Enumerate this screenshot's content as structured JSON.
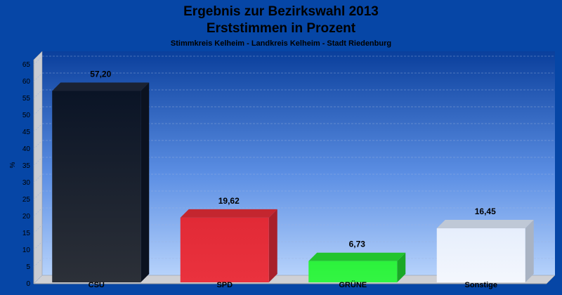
{
  "chart_data": {
    "type": "bar",
    "title": "Ergebnis zur Bezirkswahl 2013",
    "subtitle": "Erststimmen in Prozent",
    "subsubtitle": "Stimmkreis Kelheim - Landkreis Kelheim - Stadt Riedenburg",
    "ylabel": "%",
    "xlabel": "",
    "ylim": [
      0,
      65
    ],
    "ytick_step": 5,
    "grid": true,
    "legend": "none",
    "categories": [
      "CSU",
      "SPD",
      "GRÜNE",
      "Sonstige"
    ],
    "values": [
      57.2,
      19.62,
      6.73,
      16.45
    ],
    "value_labels": [
      "57,20",
      "19,62",
      "6,73",
      "16,45"
    ],
    "colors": [
      {
        "front_top": "#0a1426",
        "front_bottom": "#2c3038",
        "side": "#0b1220",
        "top": "#1a2233"
      },
      {
        "front_top": "#e12a36",
        "front_bottom": "#ea323e",
        "side": "#a8202a",
        "top": "#c4262f"
      },
      {
        "front_top": "#2cf23c",
        "front_bottom": "#33f543",
        "side": "#1aa826",
        "top": "#22c42e"
      },
      {
        "front_top": "#e6eefc",
        "front_bottom": "#f4f7fd",
        "side": "#a9b3c3",
        "top": "#bfc8d6"
      }
    ]
  }
}
